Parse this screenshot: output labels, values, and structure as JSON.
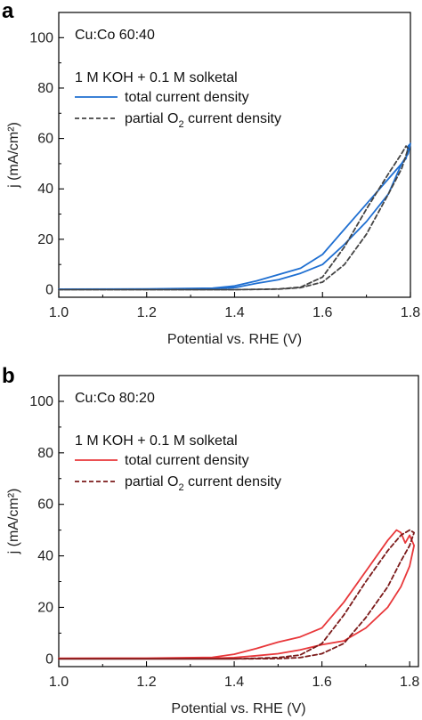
{
  "chart_data": [
    {
      "type": "line",
      "panel_label": "a",
      "composition": "Cu:Co 60:40",
      "electrolyte": "1 M KOH + 0.1 M solketal",
      "xlabel": "Potential vs. RHE (V)",
      "ylabel": "j (mA/cm²)",
      "xlim": [
        1.0,
        1.8
      ],
      "ylim": [
        -3,
        110
      ],
      "xticks": [
        "1.0",
        "1.2",
        "1.4",
        "1.6",
        "1.8"
      ],
      "yticks": [
        "0",
        "20",
        "40",
        "60",
        "80",
        "100"
      ],
      "legend": {
        "placement": "top-left",
        "entries": [
          {
            "label": "total current density",
            "style": "solid"
          },
          {
            "label": "partial O",
            "sub": "2",
            "suffix": " current density",
            "style": "dashed"
          }
        ]
      },
      "series": [
        {
          "name": "total current density",
          "color": "#1f6fd1",
          "style": "solid",
          "x": [
            1.0,
            1.2,
            1.35,
            1.4,
            1.45,
            1.5,
            1.55,
            1.6,
            1.65,
            1.7,
            1.75,
            1.78,
            1.79,
            1.795,
            1.8,
            1.795,
            1.78,
            1.75,
            1.7,
            1.65,
            1.6,
            1.55,
            1.5,
            1.45,
            1.42,
            1.4,
            1.35,
            1.2,
            1.0
          ],
          "y": [
            0.2,
            0.3,
            0.6,
            1.5,
            3.5,
            6.0,
            8.5,
            14.0,
            24.0,
            34.0,
            44.0,
            50.0,
            52.0,
            57.0,
            58.0,
            54.0,
            50.0,
            38.0,
            27.0,
            18.0,
            10.0,
            6.5,
            4.0,
            2.5,
            1.5,
            0.8,
            0.4,
            0.2,
            0.1
          ]
        },
        {
          "name": "partial O2 current density",
          "color": "#444444",
          "style": "dashed",
          "x": [
            1.0,
            1.2,
            1.4,
            1.5,
            1.55,
            1.6,
            1.65,
            1.7,
            1.75,
            1.78,
            1.79,
            1.795,
            1.78,
            1.75,
            1.7,
            1.65,
            1.6,
            1.55,
            1.5,
            1.4,
            1.2,
            1.0
          ],
          "y": [
            0.0,
            0.0,
            0.0,
            0.3,
            1.0,
            5.0,
            17.0,
            32.0,
            46.0,
            54.0,
            57.0,
            56.0,
            48.0,
            38.0,
            22.0,
            10.0,
            3.0,
            0.8,
            0.2,
            0.0,
            0.0,
            0.0
          ]
        }
      ]
    },
    {
      "type": "line",
      "panel_label": "b",
      "composition": "Cu:Co 80:20",
      "electrolyte": "1 M KOH + 0.1 M solketal",
      "xlabel": "Potential vs. RHE (V)",
      "ylabel": "j (mA/cm²)",
      "xlim": [
        1.0,
        1.82
      ],
      "ylim": [
        -3,
        110
      ],
      "xticks": [
        "1.0",
        "1.2",
        "1.4",
        "1.6",
        "1.8"
      ],
      "yticks": [
        "0",
        "20",
        "40",
        "60",
        "80",
        "100"
      ],
      "legend": {
        "placement": "top-left",
        "entries": [
          {
            "label": "total current density",
            "style": "solid"
          },
          {
            "label": "partial O",
            "sub": "2",
            "suffix": " current density",
            "style": "dashed"
          }
        ]
      },
      "series": [
        {
          "name": "total current density",
          "color": "#e8373a",
          "style": "solid",
          "x": [
            1.0,
            1.2,
            1.35,
            1.4,
            1.45,
            1.5,
            1.55,
            1.6,
            1.65,
            1.7,
            1.75,
            1.77,
            1.78,
            1.79,
            1.8,
            1.81,
            1.8,
            1.78,
            1.75,
            1.7,
            1.65,
            1.6,
            1.55,
            1.5,
            1.45,
            1.42,
            1.4,
            1.35,
            1.2,
            1.0
          ],
          "y": [
            0.2,
            0.3,
            0.6,
            1.8,
            4.0,
            6.5,
            8.5,
            12.0,
            22.0,
            34.0,
            46.0,
            50.0,
            49.0,
            45.0,
            48.0,
            44.0,
            36.0,
            28.0,
            20.0,
            12.0,
            7.0,
            5.5,
            3.5,
            2.0,
            1.2,
            0.8,
            0.5,
            0.3,
            0.2,
            0.1
          ]
        },
        {
          "name": "partial O2 current density",
          "color": "#7b1a1a",
          "style": "dashed",
          "x": [
            1.0,
            1.2,
            1.4,
            1.5,
            1.55,
            1.6,
            1.65,
            1.7,
            1.75,
            1.78,
            1.8,
            1.81,
            1.8,
            1.78,
            1.75,
            1.7,
            1.65,
            1.6,
            1.55,
            1.5,
            1.4,
            1.2,
            1.0
          ],
          "y": [
            0.0,
            0.0,
            0.0,
            0.5,
            1.5,
            6.0,
            17.0,
            30.0,
            42.0,
            48.0,
            50.0,
            49.0,
            44.0,
            38.0,
            28.0,
            16.0,
            6.0,
            2.0,
            0.5,
            0.1,
            0.0,
            0.0,
            0.0
          ]
        }
      ]
    }
  ]
}
